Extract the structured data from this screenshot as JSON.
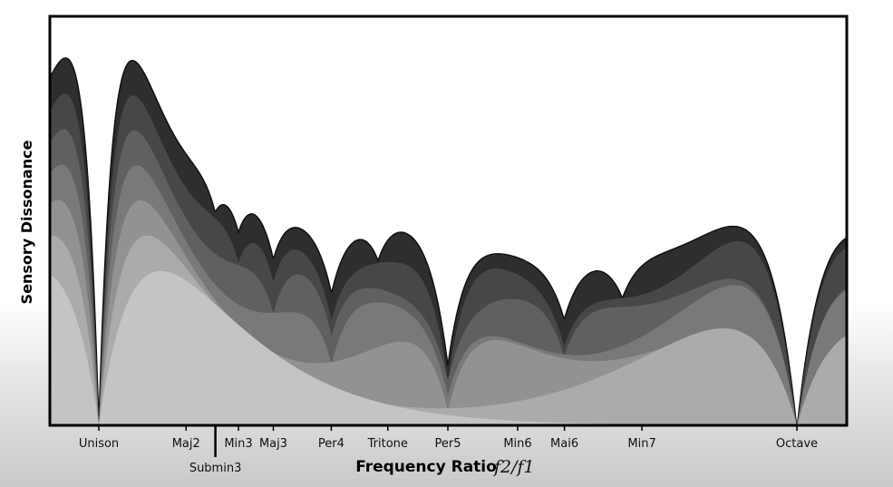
{
  "chart_data": {
    "type": "area",
    "title": "",
    "xlabel": "Frequency Ratio",
    "xlabel_math": "f2/f1",
    "ylabel": "Sensory Dissonance",
    "xlim": [
      1.0,
      2.035
    ],
    "tick_labels": [
      {
        "label": "Unison",
        "x": 1.0
      },
      {
        "label": "Maj2",
        "x": 1.125
      },
      {
        "label": "Submin3",
        "x": 1.167,
        "offset": "below"
      },
      {
        "label": "Min3",
        "x": 1.2
      },
      {
        "label": "Maj3",
        "x": 1.25
      },
      {
        "label": "Per4",
        "x": 1.333
      },
      {
        "label": "Tritone",
        "x": 1.414
      },
      {
        "label": "Per5",
        "x": 1.5
      },
      {
        "label": "Min6",
        "x": 1.6
      },
      {
        "label": "Mai6",
        "x": 1.667
      },
      {
        "label": "Min7",
        "x": 1.778
      },
      {
        "label": "Octave",
        "x": 2.0
      }
    ],
    "series_count": 7,
    "minima_ratios": [
      1.0,
      1.333,
      1.5,
      1.667,
      2.0
    ],
    "colors": {
      "lightest": "#c4c4c4",
      "darkest": "#2e2e2e",
      "outline": "#111111",
      "frame": "#000000"
    }
  }
}
